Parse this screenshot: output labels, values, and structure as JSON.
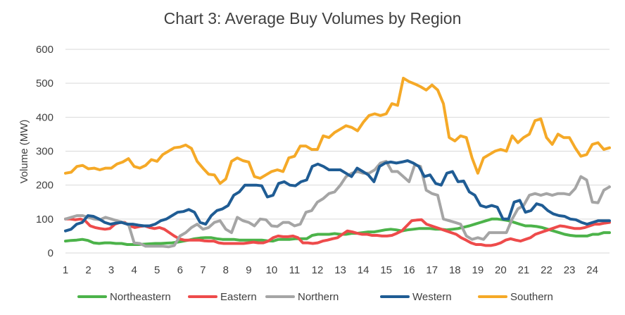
{
  "chart_data": {
    "type": "line",
    "title": "Chart 3: Average Buy Volumes by Region",
    "xlabel": "",
    "ylabel": "Volume (MW)",
    "ylim": [
      0,
      600
    ],
    "yticks": [
      "0",
      "100",
      "200",
      "300",
      "400",
      "500",
      "600"
    ],
    "xlim": [
      1,
      24.75
    ],
    "xticks": [
      "1",
      "2",
      "3",
      "4",
      "5",
      "6",
      "7",
      "8",
      "9",
      "10",
      "11",
      "12",
      "13",
      "14",
      "15",
      "16",
      "17",
      "18",
      "19",
      "20",
      "21",
      "22",
      "23",
      "24"
    ],
    "grid": "horizontal",
    "legend": "bottom",
    "series": [
      {
        "name": "Northeastern",
        "color": "#4CB34A",
        "values": [
          35,
          37,
          38,
          40,
          37,
          30,
          28,
          30,
          30,
          28,
          28,
          25,
          25,
          25,
          26,
          27,
          28,
          28,
          29,
          30,
          32,
          35,
          38,
          42,
          44,
          45,
          45,
          42,
          40,
          40,
          40,
          38,
          38,
          38,
          38,
          38,
          36,
          35,
          40,
          40,
          40,
          42,
          42,
          42,
          52,
          55,
          55,
          55,
          57,
          55,
          55,
          58,
          58,
          60,
          62,
          62,
          65,
          68,
          70,
          68,
          65,
          68,
          70,
          72,
          72,
          72,
          70,
          70,
          68,
          70,
          72,
          76,
          80,
          85,
          90,
          95,
          100,
          100,
          98,
          95,
          90,
          85,
          80,
          80,
          78,
          75,
          70,
          65,
          60,
          55,
          52,
          50,
          50,
          50,
          55,
          55,
          60,
          60
        ]
      },
      {
        "name": "Eastern",
        "color": "#EE4B4B",
        "values": [
          100,
          100,
          98,
          100,
          95,
          80,
          75,
          72,
          70,
          72,
          85,
          90,
          90,
          80,
          75,
          78,
          80,
          75,
          72,
          75,
          70,
          60,
          50,
          42,
          38,
          38,
          38,
          38,
          36,
          35,
          35,
          30,
          28,
          28,
          28,
          28,
          28,
          30,
          32,
          30,
          30,
          35,
          45,
          50,
          48,
          48,
          50,
          45,
          30,
          30,
          28,
          30,
          35,
          38,
          42,
          45,
          55,
          65,
          62,
          58,
          55,
          55,
          52,
          52,
          50,
          50,
          52,
          58,
          65,
          80,
          95,
          97,
          98,
          85,
          80,
          75,
          70,
          65,
          60,
          55,
          45,
          38,
          30,
          25,
          25,
          22,
          22,
          25,
          30,
          38,
          42,
          38,
          35,
          40,
          45,
          55,
          60,
          65,
          70,
          75,
          80,
          78,
          75,
          72,
          72,
          75,
          80,
          85,
          85,
          88,
          90
        ]
      },
      {
        "name": "Northern",
        "color": "#A5A5A5",
        "values": [
          100,
          105,
          110,
          110,
          105,
          100,
          98,
          105,
          100,
          95,
          90,
          85,
          30,
          28,
          20,
          20,
          20,
          20,
          18,
          22,
          50,
          60,
          75,
          85,
          70,
          75,
          90,
          95,
          70,
          60,
          105,
          95,
          90,
          80,
          100,
          98,
          80,
          78,
          90,
          90,
          80,
          85,
          120,
          125,
          150,
          160,
          175,
          180,
          200,
          225,
          235,
          240,
          235,
          235,
          245,
          265,
          270,
          240,
          240,
          225,
          210,
          260,
          255,
          185,
          175,
          170,
          100,
          95,
          90,
          85,
          50,
          40,
          45,
          40,
          60,
          60,
          60,
          60,
          100,
          130,
          140,
          170,
          175,
          170,
          175,
          170,
          175,
          175,
          172,
          190,
          225,
          215,
          150,
          148,
          185,
          195
        ]
      },
      {
        "name": "Western",
        "color": "#1F5C94",
        "values": [
          65,
          70,
          85,
          90,
          110,
          108,
          100,
          90,
          85,
          88,
          90,
          85,
          85,
          82,
          80,
          80,
          85,
          95,
          100,
          110,
          120,
          122,
          128,
          120,
          90,
          85,
          110,
          125,
          130,
          140,
          170,
          180,
          200,
          200,
          200,
          198,
          165,
          170,
          205,
          210,
          200,
          198,
          210,
          215,
          255,
          262,
          255,
          245,
          245,
          245,
          235,
          225,
          250,
          240,
          230,
          210,
          255,
          265,
          268,
          265,
          268,
          272,
          265,
          255,
          225,
          230,
          205,
          200,
          235,
          240,
          210,
          212,
          180,
          170,
          140,
          135,
          140,
          135,
          100,
          100,
          150,
          155,
          120,
          125,
          145,
          140,
          125,
          115,
          110,
          108,
          100,
          98,
          90,
          85,
          90,
          95,
          95,
          95
        ]
      },
      {
        "name": "Southern",
        "color": "#F5A927",
        "values": [
          235,
          238,
          255,
          258,
          248,
          250,
          245,
          250,
          250,
          262,
          268,
          278,
          255,
          250,
          258,
          275,
          270,
          290,
          300,
          310,
          312,
          318,
          308,
          270,
          250,
          232,
          230,
          205,
          218,
          270,
          280,
          272,
          268,
          225,
          220,
          230,
          240,
          245,
          240,
          280,
          285,
          315,
          315,
          305,
          305,
          345,
          340,
          355,
          365,
          375,
          370,
          360,
          385,
          405,
          410,
          405,
          410,
          440,
          435,
          515,
          505,
          498,
          490,
          480,
          495,
          480,
          440,
          340,
          330,
          345,
          340,
          280,
          235,
          280,
          290,
          300,
          305,
          300,
          345,
          325,
          340,
          350,
          390,
          395,
          340,
          320,
          350,
          340,
          340,
          310,
          285,
          290,
          320,
          325,
          305,
          310
        ]
      }
    ]
  }
}
